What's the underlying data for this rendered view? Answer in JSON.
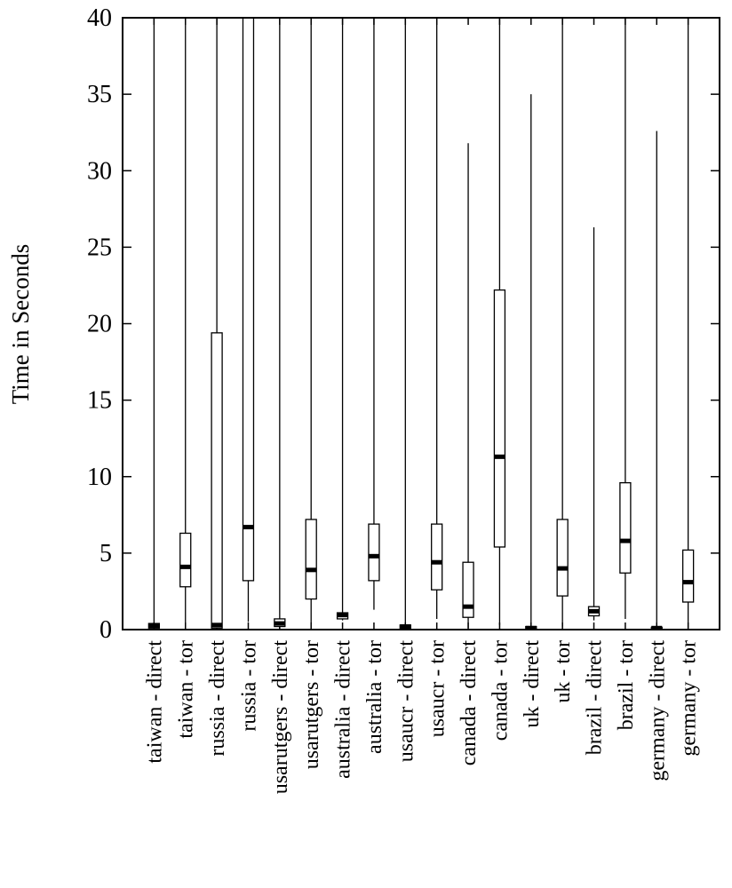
{
  "chart_data": {
    "type": "box",
    "y_label": "Time in Seconds",
    "categories": [
      "taiwan - direct",
      "taiwan - tor",
      "russia - direct",
      "russia - tor",
      "usarutgers - direct",
      "usarutgers - tor",
      "australia - direct",
      "australia - tor",
      "usaucr - direct",
      "usaucr - tor",
      "canada - direct",
      "canada - tor",
      "uk - direct",
      "uk - tor",
      "brazil - direct",
      "brazil - tor",
      "germany - direct",
      "germany - tor"
    ],
    "low": [
      0,
      0,
      0,
      0.5,
      0,
      0.4,
      0.6,
      1.3,
      0,
      0.7,
      0.1,
      0.3,
      0,
      0.2,
      0.6,
      0.7,
      0,
      0.1
    ],
    "q1": [
      0.1,
      2.8,
      0.1,
      3.2,
      0.2,
      2.0,
      0.7,
      3.2,
      0.05,
      2.6,
      0.8,
      5.4,
      0.05,
      2.2,
      0.9,
      3.7,
      0.05,
      1.8
    ],
    "median": [
      0.25,
      4.1,
      0.3,
      6.7,
      0.4,
      3.9,
      0.95,
      4.8,
      0.2,
      4.4,
      1.5,
      11.3,
      0.1,
      4.0,
      1.2,
      5.8,
      0.1,
      3.1
    ],
    "q3": [
      0.4,
      6.3,
      19.4,
      40,
      0.7,
      7.2,
      1.1,
      6.9,
      0.3,
      6.9,
      4.4,
      22.2,
      0.2,
      7.2,
      1.5,
      9.6,
      0.15,
      5.2
    ],
    "high": [
      40,
      40,
      40,
      40,
      40,
      40,
      40,
      40,
      40,
      40,
      31.8,
      40,
      35.0,
      40,
      26.3,
      40,
      32.6,
      40
    ],
    "color": "#000000",
    "ylim": [
      0,
      40
    ],
    "yticks": [
      0,
      5,
      10,
      15,
      20,
      25,
      30,
      35,
      40
    ]
  }
}
